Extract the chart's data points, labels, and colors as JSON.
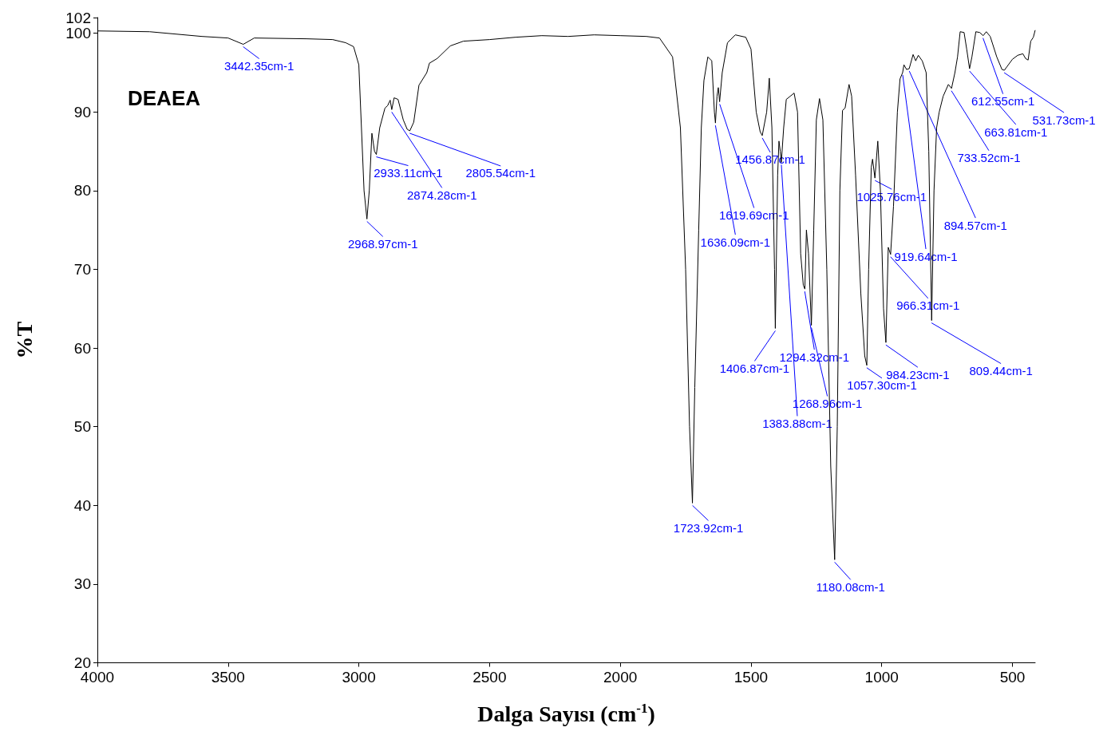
{
  "chart_data": {
    "type": "line",
    "title": "DEAEA",
    "xlabel": "Dalga Sayısı (cm$^{-1}$)",
    "ylabel": "%T",
    "xlim": [
      4000,
      413
    ],
    "ylim": [
      20,
      102
    ],
    "xticks": [
      4000,
      3500,
      3000,
      2500,
      2000,
      1500,
      1000,
      500
    ],
    "yticks": [
      20,
      30,
      40,
      50,
      60,
      70,
      80,
      90,
      100,
      102
    ],
    "marker": "none",
    "x": [
      4000,
      3800,
      3600,
      3500,
      3442,
      3400,
      3200,
      3100,
      3050,
      3020,
      3000,
      2990,
      2980,
      2969,
      2960,
      2950,
      2940,
      2933,
      2920,
      2900,
      2890,
      2880,
      2874,
      2865,
      2850,
      2830,
      2815,
      2805,
      2790,
      2770,
      2740,
      2730,
      2700,
      2650,
      2600,
      2500,
      2400,
      2300,
      2200,
      2100,
      2000,
      1900,
      1850,
      1800,
      1770,
      1750,
      1735,
      1724,
      1715,
      1700,
      1690,
      1680,
      1665,
      1650,
      1640,
      1636,
      1630,
      1625,
      1620,
      1610,
      1590,
      1560,
      1520,
      1500,
      1480,
      1465,
      1457,
      1440,
      1430,
      1420,
      1410,
      1407,
      1398,
      1393,
      1388,
      1384,
      1375,
      1365,
      1350,
      1335,
      1322,
      1310,
      1300,
      1294,
      1288,
      1280,
      1269,
      1260,
      1250,
      1238,
      1225,
      1210,
      1195,
      1180,
      1170,
      1160,
      1150,
      1140,
      1125,
      1115,
      1100,
      1080,
      1065,
      1057,
      1050,
      1040,
      1035,
      1026,
      1015,
      1005,
      993,
      984,
      975,
      966,
      955,
      940,
      930,
      920,
      915,
      905,
      895,
      880,
      870,
      860,
      845,
      830,
      820,
      809,
      800,
      790,
      780,
      765,
      745,
      733,
      720,
      710,
      700,
      685,
      675,
      664,
      655,
      640,
      625,
      612,
      600,
      585,
      560,
      540,
      531,
      520,
      500,
      480,
      460,
      450,
      440,
      430,
      420,
      413
    ],
    "series": [
      {
        "color": "#000000",
        "values": [
          100.3,
          100.2,
          99.6,
          99.4,
          98.6,
          99.4,
          99.3,
          99.2,
          98.8,
          98.3,
          96,
          88,
          80,
          76.4,
          80,
          87.3,
          85,
          84.6,
          88,
          90.5,
          90.8,
          91.5,
          90.3,
          91.8,
          91.6,
          89,
          87.8,
          87.6,
          88.7,
          93.4,
          95,
          96.2,
          96.8,
          98.4,
          99,
          99.2,
          99.5,
          99.7,
          99.6,
          99.8,
          99.7,
          99.6,
          99.4,
          97,
          88,
          70,
          50,
          40.3,
          55,
          75,
          88,
          94,
          97,
          96.5,
          90,
          88.6,
          92,
          93.1,
          91.3,
          95,
          98.8,
          99.8,
          99.5,
          98,
          90,
          87.5,
          87,
          90,
          94.3,
          88,
          70,
          62.5,
          82,
          86.3,
          85,
          83.6,
          88,
          91.6,
          92,
          92.4,
          90,
          72,
          68,
          67.5,
          75,
          72,
          62.9,
          75,
          89,
          91.7,
          89,
          70,
          45,
          33.1,
          50,
          80,
          90.2,
          90.5,
          93.5,
          92,
          82,
          67,
          59,
          57.8,
          70,
          83,
          84,
          81.6,
          86.3,
          80,
          65,
          60.7,
          72.8,
          71.9,
          78,
          90,
          94.2,
          95,
          96,
          95.4,
          95.5,
          97.3,
          96.5,
          97.2,
          96.5,
          95,
          85,
          63.5,
          80,
          88,
          90,
          92,
          93.5,
          93,
          95,
          97,
          100.2,
          100.1,
          98,
          95.5,
          97,
          100.2,
          100.1,
          99.7,
          100.2,
          99.6,
          97,
          95.4,
          95.3,
          95.8,
          96.7,
          97.2,
          97.4,
          96.8,
          96.6,
          99,
          99.5,
          100.4
        ]
      }
    ],
    "annotations": [
      {
        "text": "3442.35cm-1",
        "x": 3442.35,
        "y": 98.6
      },
      {
        "text": "2968.97cm-1",
        "x": 2968.97,
        "y": 76.4
      },
      {
        "text": "2933.11cm-1",
        "x": 2933.11,
        "y": 84.6
      },
      {
        "text": "2874.28cm-1",
        "x": 2874.28,
        "y": 90.3
      },
      {
        "text": "2805.54cm-1",
        "x": 2805.54,
        "y": 87.6
      },
      {
        "text": "1723.92cm-1",
        "x": 1723.92,
        "y": 40.3
      },
      {
        "text": "1636.09cm-1",
        "x": 1636.09,
        "y": 88.6
      },
      {
        "text": "1619.69cm-1",
        "x": 1619.69,
        "y": 91.3
      },
      {
        "text": "1456.87cm-1",
        "x": 1456.87,
        "y": 87
      },
      {
        "text": "1406.87cm-1",
        "x": 1406.87,
        "y": 62.5
      },
      {
        "text": "1383.88cm-1",
        "x": 1383.88,
        "y": 83.6
      },
      {
        "text": "1294.32cm-1",
        "x": 1294.32,
        "y": 67.5
      },
      {
        "text": "1268.96cm-1",
        "x": 1268.96,
        "y": 62.9
      },
      {
        "text": "1180.08cm-1",
        "x": 1180.08,
        "y": 33.1
      },
      {
        "text": "1057.30cm-1",
        "x": 1057.3,
        "y": 57.8
      },
      {
        "text": "1025.76cm-1",
        "x": 1025.76,
        "y": 81.6
      },
      {
        "text": "984.23cm-1",
        "x": 984.23,
        "y": 60.7
      },
      {
        "text": "966.31cm-1",
        "x": 966.31,
        "y": 71.9
      },
      {
        "text": "919.64cm-1",
        "x": 919.64,
        "y": 95
      },
      {
        "text": "894.57cm-1",
        "x": 894.57,
        "y": 95.5
      },
      {
        "text": "809.44cm-1",
        "x": 809.44,
        "y": 63.5
      },
      {
        "text": "733.52cm-1",
        "x": 733.52,
        "y": 93
      },
      {
        "text": "663.81cm-1",
        "x": 663.81,
        "y": 95.5
      },
      {
        "text": "612.55cm-1",
        "x": 612.55,
        "y": 99.7
      },
      {
        "text": "531.73cm-1",
        "x": 531.73,
        "y": 95.3
      }
    ]
  }
}
